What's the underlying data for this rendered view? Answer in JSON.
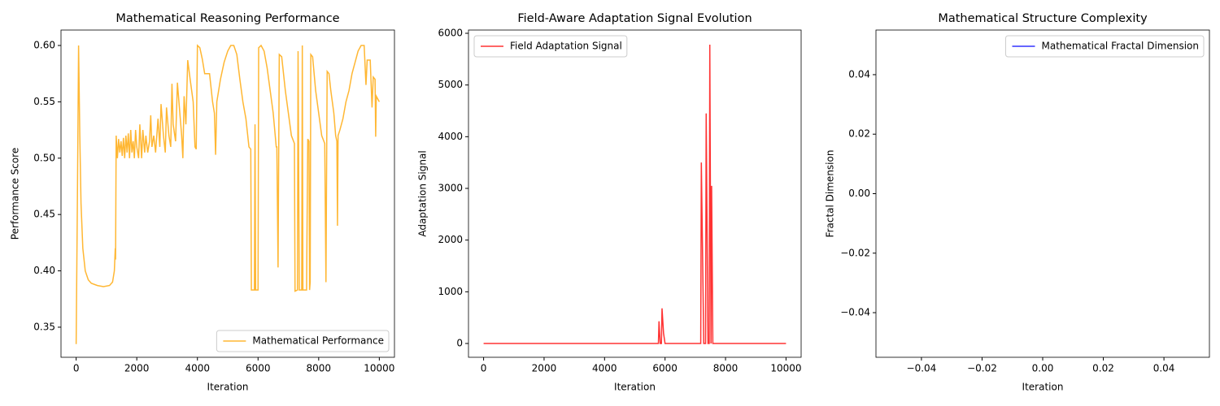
{
  "chart_data": [
    {
      "type": "line",
      "title": "Mathematical Reasoning Performance",
      "xlabel": "Iteration",
      "ylabel": "Performance Score",
      "x": [
        0,
        40,
        80,
        120,
        160,
        220,
        300,
        400,
        500,
        700,
        900,
        1100,
        1200,
        1260,
        1290,
        1300,
        1320,
        1360,
        1400,
        1440,
        1480,
        1520,
        1560,
        1600,
        1640,
        1680,
        1720,
        1760,
        1800,
        1840,
        1880,
        1920,
        1960,
        2000,
        2060,
        2100,
        2160,
        2200,
        2260,
        2300,
        2360,
        2420,
        2460,
        2500,
        2560,
        2620,
        2700,
        2760,
        2800,
        2880,
        2940,
        2980,
        3060,
        3120,
        3160,
        3200,
        3280,
        3340,
        3420,
        3480,
        3520,
        3560,
        3620,
        3680,
        3760,
        3860,
        3920,
        3960,
        4000,
        4080,
        4160,
        4240,
        4400,
        4500,
        4560,
        4600,
        4640,
        4760,
        4880,
        5000,
        5100,
        5200,
        5300,
        5400,
        5500,
        5600,
        5700,
        5760,
        5780,
        5880,
        5900,
        5920,
        6000,
        6020,
        6100,
        6200,
        6300,
        6400,
        6500,
        6600,
        6620,
        6660,
        6700,
        6780,
        6900,
        7000,
        7100,
        7200,
        7220,
        7300,
        7320,
        7360,
        7440,
        7460,
        7480,
        7600,
        7640,
        7680,
        7700,
        7720,
        7740,
        7800,
        7900,
        8000,
        8100,
        8200,
        8240,
        8280,
        8340,
        8400,
        8500,
        8560,
        8600,
        8620,
        8640,
        8700,
        8800,
        8900,
        9000,
        9100,
        9200,
        9300,
        9400,
        9500,
        9560,
        9600,
        9700,
        9760,
        9800,
        9860,
        9880,
        9900,
        10000
      ],
      "series": [
        {
          "name": "Mathematical Performance",
          "color": "#ffa500",
          "values": [
            0.335,
            0.46,
            0.6,
            0.52,
            0.46,
            0.42,
            0.4,
            0.392,
            0.389,
            0.387,
            0.386,
            0.387,
            0.39,
            0.4,
            0.42,
            0.41,
            0.52,
            0.5,
            0.517,
            0.505,
            0.515,
            0.502,
            0.518,
            0.5,
            0.52,
            0.505,
            0.522,
            0.5,
            0.525,
            0.505,
            0.515,
            0.5,
            0.525,
            0.51,
            0.5,
            0.53,
            0.5,
            0.525,
            0.505,
            0.52,
            0.505,
            0.515,
            0.538,
            0.51,
            0.52,
            0.505,
            0.535,
            0.51,
            0.548,
            0.52,
            0.505,
            0.545,
            0.52,
            0.51,
            0.566,
            0.53,
            0.515,
            0.567,
            0.54,
            0.52,
            0.5,
            0.555,
            0.53,
            0.587,
            0.57,
            0.55,
            0.51,
            0.508,
            0.6,
            0.598,
            0.588,
            0.575,
            0.575,
            0.55,
            0.54,
            0.503,
            0.55,
            0.57,
            0.585,
            0.595,
            0.6,
            0.6,
            0.592,
            0.57,
            0.55,
            0.535,
            0.51,
            0.508,
            0.383,
            0.383,
            0.53,
            0.383,
            0.383,
            0.598,
            0.6,
            0.595,
            0.58,
            0.56,
            0.54,
            0.51,
            0.51,
            0.403,
            0.592,
            0.59,
            0.56,
            0.54,
            0.52,
            0.513,
            0.382,
            0.383,
            0.595,
            0.383,
            0.383,
            0.6,
            0.383,
            0.383,
            0.517,
            0.515,
            0.383,
            0.39,
            0.592,
            0.59,
            0.56,
            0.54,
            0.52,
            0.513,
            0.39,
            0.577,
            0.575,
            0.56,
            0.54,
            0.52,
            0.515,
            0.44,
            0.52,
            0.525,
            0.535,
            0.55,
            0.56,
            0.575,
            0.585,
            0.595,
            0.6,
            0.6,
            0.565,
            0.587,
            0.587,
            0.545,
            0.572,
            0.57,
            0.519,
            0.555,
            0.55
          ]
        }
      ],
      "xlim": [
        -500,
        10500
      ],
      "xticks": [
        0,
        2000,
        4000,
        6000,
        8000,
        10000
      ],
      "ylim": [
        0.3233,
        0.6137
      ],
      "yticks": [
        0.35,
        {
          "value": 0.4,
          "label": "0.40"
        },
        0.45,
        {
          "value": 0.5,
          "label": "0.50"
        },
        0.55,
        {
          "value": 0.6,
          "label": "0.60"
        }
      ],
      "legend": "lower right"
    },
    {
      "type": "line",
      "title": "Field-Aware Adaptation Signal Evolution",
      "xlabel": "Iteration",
      "ylabel": "Adaptation Signal",
      "x": [
        0,
        5780,
        5800,
        5840,
        5880,
        5900,
        5950,
        6000,
        7180,
        7200,
        7280,
        7340,
        7360,
        7420,
        7460,
        7480,
        7520,
        7540,
        7580,
        10000
      ],
      "series": [
        {
          "name": "Field Adaptation Signal",
          "color": "#ff0000",
          "values": [
            0,
            0,
            430,
            0,
            0,
            680,
            200,
            0,
            0,
            3500,
            0,
            0,
            4450,
            0,
            0,
            5780,
            0,
            3050,
            0,
            0
          ]
        }
      ],
      "xlim": [
        -500,
        10500
      ],
      "xticks": [
        0,
        2000,
        4000,
        6000,
        8000,
        10000
      ],
      "ylim": [
        -267,
        6063
      ],
      "yticks": [
        0,
        1000,
        2000,
        3000,
        4000,
        5000,
        6000
      ],
      "legend": "upper left"
    },
    {
      "type": "line",
      "title": "Mathematical Structure Complexity",
      "xlabel": "Iteration",
      "ylabel": "Fractal Dimension",
      "x": [],
      "series": [
        {
          "name": "Mathematical Fractal Dimension",
          "color": "#0000ff",
          "values": []
        }
      ],
      "xlim": [
        -0.055,
        0.055
      ],
      "xticks": [
        {
          "value": -0.04,
          "label": "−0.04"
        },
        {
          "value": -0.02,
          "label": "−0.02"
        },
        {
          "value": 0,
          "label": "0.00"
        },
        0.02,
        0.04
      ],
      "ylim": [
        -0.055,
        0.055
      ],
      "yticks": [
        {
          "value": -0.04,
          "label": "−0.04"
        },
        {
          "value": -0.02,
          "label": "−0.02"
        },
        {
          "value": 0,
          "label": "0.00"
        },
        0.02,
        0.04
      ],
      "legend": "upper right"
    }
  ]
}
